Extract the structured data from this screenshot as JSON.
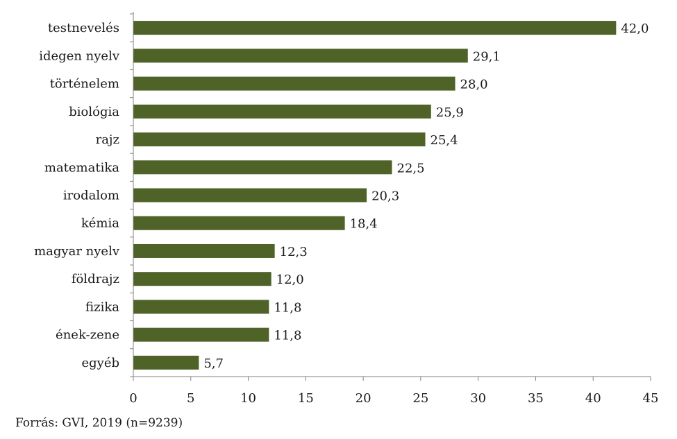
{
  "source_note": "Forrás: GVI, 2019 (n=9239)",
  "colors": {
    "bar": "#4f6228",
    "axis": "#808080",
    "text": "#1a1a1a"
  },
  "chart_data": {
    "type": "bar",
    "orientation": "horizontal",
    "categories": [
      "testnevelés",
      "idegen nyelv",
      "történelem",
      "biológia",
      "rajz",
      "matematika",
      "irodalom",
      "kémia",
      "magyar nyelv",
      "földrajz",
      "fizika",
      "ének-zene",
      "egyéb"
    ],
    "values": [
      42.0,
      29.1,
      28.0,
      25.9,
      25.4,
      22.5,
      20.3,
      18.4,
      12.3,
      12.0,
      11.8,
      11.8,
      5.7
    ],
    "value_labels": [
      "42,0",
      "29,1",
      "28,0",
      "25,9",
      "25,4",
      "22,5",
      "20,3",
      "18,4",
      "12,3",
      "12,0",
      "11,8",
      "11,8",
      "5,7"
    ],
    "xlim": [
      0,
      45
    ],
    "xticks": [
      0,
      5,
      10,
      15,
      20,
      25,
      30,
      35,
      40,
      45
    ],
    "xtick_labels": [
      "0",
      "5",
      "10",
      "15",
      "20",
      "25",
      "30",
      "35",
      "40",
      "45"
    ],
    "grid": false,
    "legend": "none"
  }
}
